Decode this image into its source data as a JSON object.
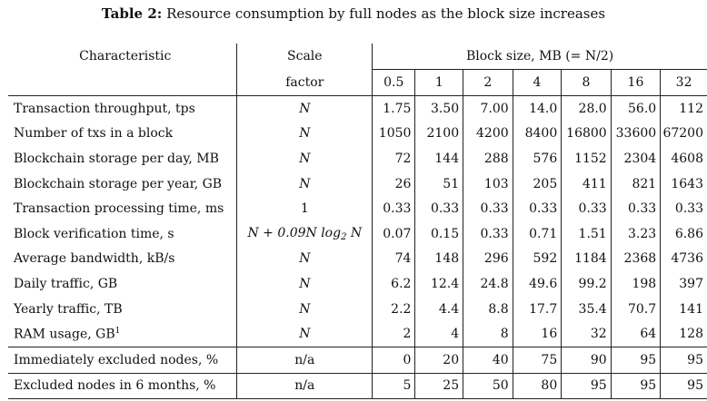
{
  "caption": {
    "label": "Table 2:",
    "text": "Resource consumption by full nodes as the block size increases"
  },
  "header": {
    "characteristic": "Characteristic",
    "scale_line1": "Scale",
    "scale_line2": "factor",
    "block_size": "Block size, MB (= N/2)",
    "sizes": [
      "0.5",
      "1",
      "2",
      "4",
      "8",
      "16",
      "32"
    ]
  },
  "rows": [
    {
      "label": "Transaction throughput, tps",
      "scale": "N",
      "values": [
        "1.75",
        "3.50",
        "7.00",
        "14.0",
        "28.0",
        "56.0",
        "112"
      ]
    },
    {
      "label": "Number of txs in a block",
      "scale": "N",
      "values": [
        "1050",
        "2100",
        "4200",
        "8400",
        "16800",
        "33600",
        "67200"
      ]
    },
    {
      "label": "Blockchain storage per day, MB",
      "scale": "N",
      "values": [
        "72",
        "144",
        "288",
        "576",
        "1152",
        "2304",
        "4608"
      ]
    },
    {
      "label": "Blockchain storage per year, GB",
      "scale": "N",
      "values": [
        "26",
        "51",
        "103",
        "205",
        "411",
        "821",
        "1643"
      ]
    },
    {
      "label": "Transaction processing time, ms",
      "scale": "1",
      "values": [
        "0.33",
        "0.33",
        "0.33",
        "0.33",
        "0.33",
        "0.33",
        "0.33"
      ]
    },
    {
      "label": "Block verification time, s",
      "scale": "N + 0.09N log2 N",
      "values": [
        "0.07",
        "0.15",
        "0.33",
        "0.71",
        "1.51",
        "3.23",
        "6.86"
      ]
    },
    {
      "label": "Average bandwidth, kB/s",
      "scale": "N",
      "values": [
        "74",
        "148",
        "296",
        "592",
        "1184",
        "2368",
        "4736"
      ]
    },
    {
      "label": "Daily traffic, GB",
      "scale": "N",
      "values": [
        "6.2",
        "12.4",
        "24.8",
        "49.6",
        "99.2",
        "198",
        "397"
      ]
    },
    {
      "label": "Yearly traffic, TB",
      "scale": "N",
      "values": [
        "2.2",
        "4.4",
        "8.8",
        "17.7",
        "35.4",
        "70.7",
        "141"
      ]
    },
    {
      "label": "RAM usage, GB",
      "label_sup": "1",
      "scale": "N",
      "values": [
        "2",
        "4",
        "8",
        "16",
        "32",
        "64",
        "128"
      ]
    },
    {
      "label": "Immediately excluded nodes, %",
      "scale": "n/a",
      "values": [
        "0",
        "20",
        "40",
        "75",
        "90",
        "95",
        "95"
      ]
    },
    {
      "label": "Excluded nodes in 6 months, %",
      "scale": "n/a",
      "values": [
        "5",
        "25",
        "50",
        "80",
        "95",
        "95",
        "95"
      ]
    }
  ]
}
